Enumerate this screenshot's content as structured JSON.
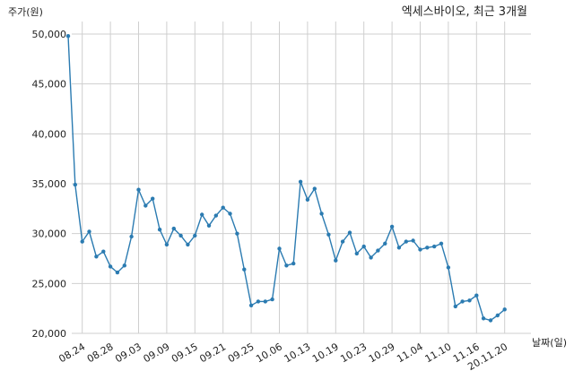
{
  "chart_data": {
    "type": "line",
    "title": "엑세스바이오, 최근 3개월",
    "xlabel": "날짜(일)",
    "ylabel": "주가(원)",
    "ylim": [
      20000,
      50000
    ],
    "yticks": [
      20000,
      25000,
      30000,
      35000,
      40000,
      45000,
      50000
    ],
    "ytick_labels": [
      "20,000",
      "25,000",
      "30,000",
      "35,000",
      "40,000",
      "45,000",
      "50,000"
    ],
    "grid": true,
    "color": "#2b7bb1",
    "xtick_labels": [
      {
        "index": 2,
        "label": "08.24"
      },
      {
        "index": 6,
        "label": "08.28"
      },
      {
        "index": 10,
        "label": "09.03"
      },
      {
        "index": 14,
        "label": "09.09"
      },
      {
        "index": 18,
        "label": "09.15"
      },
      {
        "index": 22,
        "label": "09.21"
      },
      {
        "index": 26,
        "label": "09.25"
      },
      {
        "index": 30,
        "label": "10.06"
      },
      {
        "index": 34,
        "label": "10.13"
      },
      {
        "index": 38,
        "label": "10.19"
      },
      {
        "index": 42,
        "label": "10.23"
      },
      {
        "index": 46,
        "label": "10.29"
      },
      {
        "index": 50,
        "label": "11.04"
      },
      {
        "index": 54,
        "label": "11.10"
      },
      {
        "index": 58,
        "label": "11.16"
      },
      {
        "index": 62,
        "label": "20.11.20"
      }
    ],
    "values": [
      49800,
      34900,
      29200,
      30200,
      27700,
      28200,
      26700,
      26100,
      26800,
      29700,
      34400,
      32800,
      33500,
      30400,
      28900,
      30500,
      29800,
      28900,
      29800,
      31900,
      30800,
      31800,
      32600,
      32000,
      30000,
      26400,
      22800,
      23200,
      23200,
      23400,
      28500,
      26800,
      27000,
      35200,
      33400,
      34500,
      32000,
      29900,
      27300,
      29200,
      30100,
      28000,
      28700,
      27600,
      28300,
      29000,
      30700,
      28600,
      29200,
      29300,
      28400,
      28600,
      28700,
      29000,
      26600,
      22700,
      23200,
      23300,
      23800,
      21500,
      21300,
      21800,
      22400
    ]
  }
}
